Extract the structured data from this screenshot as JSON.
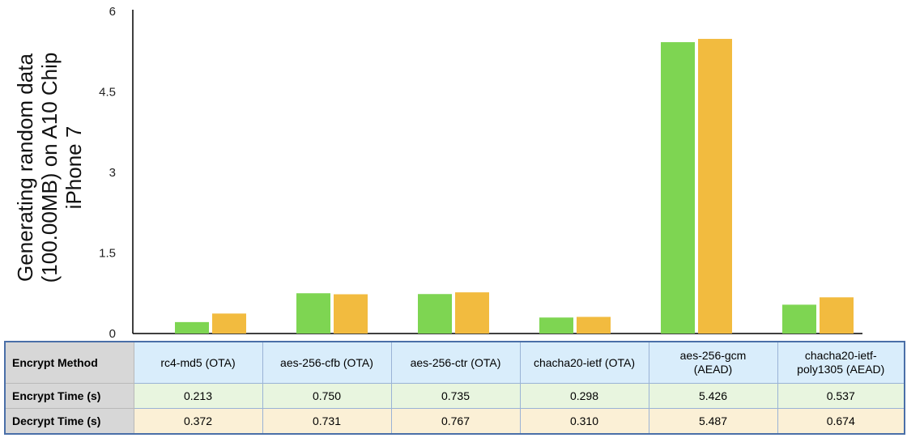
{
  "chart_data": {
    "type": "bar",
    "ylabel_lines": [
      "Generating random data",
      "(100.00MB) on A10 Chip",
      "iPhone 7"
    ],
    "ylim": [
      0,
      6
    ],
    "yticks": [
      "0",
      "1.5",
      "3",
      "4.5",
      "6"
    ],
    "ytick_values": [
      0,
      1.5,
      3,
      4.5,
      6
    ],
    "categories": [
      "rc4-md5 (OTA)",
      "aes-256-cfb (OTA)",
      "aes-256-ctr (OTA)",
      "chacha20-ietf (OTA)",
      "aes-256-gcm (AEAD)",
      "chacha20-ietf-poly1305 (AEAD)"
    ],
    "series": [
      {
        "name": "Encrypt Time (s)",
        "values": [
          0.213,
          0.75,
          0.735,
          0.298,
          5.426,
          0.537
        ],
        "color": "#7ed552"
      },
      {
        "name": "Decrypt Time (s)",
        "values": [
          0.372,
          0.731,
          0.767,
          0.31,
          5.487,
          0.674
        ],
        "color": "#f2bb3f"
      }
    ],
    "grid": false,
    "legend": "data table below chart"
  },
  "table": {
    "header_label": "Encrypt Method",
    "columns": [
      [
        "rc4-md5 (OTA)"
      ],
      [
        "aes-256-cfb (OTA)"
      ],
      [
        "aes-256-ctr (OTA)"
      ],
      [
        "chacha20-ietf (OTA)"
      ],
      [
        "aes-256-gcm",
        "(AEAD)"
      ],
      [
        "chacha20-ietf-",
        "poly1305 (AEAD)"
      ]
    ],
    "rows": [
      {
        "label": "Encrypt Time (s)",
        "cells": [
          "0.213",
          "0.750",
          "0.735",
          "0.298",
          "5.426",
          "0.537"
        ]
      },
      {
        "label": "Decrypt Time (s)",
        "cells": [
          "0.372",
          "0.731",
          "0.767",
          "0.310",
          "5.487",
          "0.674"
        ]
      }
    ]
  }
}
